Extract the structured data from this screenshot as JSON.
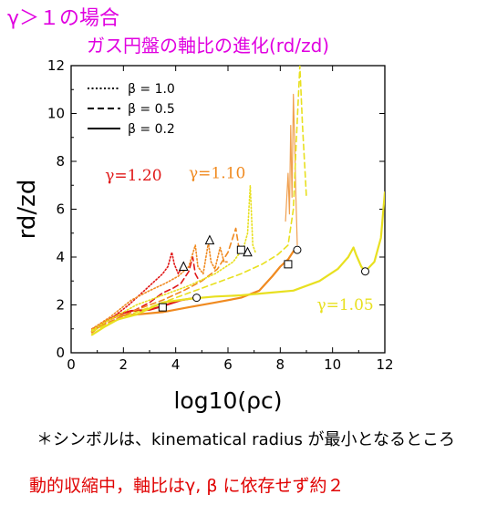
{
  "header": {
    "title": "γ＞１の場合",
    "subtitle": "ガス円盤の軸比の進化(rd/zd)",
    "title_color": "#e000e0"
  },
  "footer": {
    "note": "＊シンボルは、kinematical radius が最小となるところ",
    "conclusion": "動的収縮中，軸比はγ, β に依存せず約２",
    "conclusion_color": "#e00000"
  },
  "chart_data": {
    "type": "line",
    "xlabel": "log10(ρc)",
    "ylabel": "rd/zd",
    "xlim": [
      0,
      12
    ],
    "ylim": [
      0,
      12
    ],
    "xticks": [
      0,
      2,
      4,
      6,
      8,
      10,
      12
    ],
    "yticks": [
      0,
      2,
      4,
      6,
      8,
      10,
      12
    ],
    "grid": false,
    "legend": {
      "position": "top-left",
      "entries": [
        {
          "label": "β = 1.0",
          "style": "dotted"
        },
        {
          "label": "β = 0.5",
          "style": "dashed"
        },
        {
          "label": "β = 0.2",
          "style": "solid"
        }
      ]
    },
    "annotations": [
      {
        "text": "γ=1.20",
        "x": 1.3,
        "y": 7.2,
        "color": "#e01818"
      },
      {
        "text": "γ=1.10",
        "x": 4.5,
        "y": 7.3,
        "color": "#f08a20"
      },
      {
        "text": "γ=1.05",
        "x": 9.4,
        "y": 1.8,
        "color": "#e8e020"
      }
    ],
    "series": [
      {
        "gamma": "1.20",
        "beta": "1.0",
        "color": "#e01818",
        "style": "dotted",
        "points": [
          [
            0.8,
            1.0
          ],
          [
            1.5,
            1.4
          ],
          [
            2.2,
            2.0
          ],
          [
            2.8,
            2.6
          ],
          [
            3.2,
            3.0
          ],
          [
            3.5,
            3.3
          ],
          [
            3.7,
            3.6
          ],
          [
            3.85,
            4.2
          ],
          [
            3.95,
            3.7
          ],
          [
            4.1,
            3.3
          ],
          [
            4.25,
            3.6
          ]
        ]
      },
      {
        "gamma": "1.20",
        "beta": "0.5",
        "color": "#e01818",
        "style": "dashed",
        "points": [
          [
            0.8,
            1.0
          ],
          [
            1.5,
            1.3
          ],
          [
            2.3,
            1.7
          ],
          [
            3.0,
            2.1
          ],
          [
            3.5,
            2.5
          ],
          [
            3.9,
            2.7
          ],
          [
            4.2,
            2.9
          ],
          [
            4.5,
            3.4
          ],
          [
            4.65,
            4.0
          ],
          [
            4.75,
            3.3
          ],
          [
            4.9,
            3.0
          ]
        ]
      },
      {
        "gamma": "1.20",
        "beta": "0.2",
        "color": "#e01818",
        "style": "solid",
        "points": [
          [
            0.8,
            0.9
          ],
          [
            1.3,
            1.3
          ],
          [
            1.8,
            1.6
          ],
          [
            2.3,
            1.75
          ],
          [
            3.0,
            1.8
          ],
          [
            3.5,
            1.95
          ],
          [
            4.2,
            2.2
          ],
          [
            4.8,
            2.3
          ]
        ]
      },
      {
        "gamma": "1.10",
        "beta": "1.0",
        "color": "#f08a20",
        "style": "dotted",
        "points": [
          [
            0.8,
            1.0
          ],
          [
            1.5,
            1.5
          ],
          [
            2.3,
            2.2
          ],
          [
            3.0,
            2.6
          ],
          [
            3.6,
            2.9
          ],
          [
            4.1,
            3.2
          ],
          [
            4.5,
            3.6
          ],
          [
            4.75,
            4.5
          ],
          [
            4.85,
            3.6
          ],
          [
            5.05,
            3.3
          ],
          [
            5.25,
            4.6
          ],
          [
            5.35,
            3.8
          ],
          [
            5.5,
            3.5
          ],
          [
            5.7,
            4.4
          ],
          [
            5.85,
            3.8
          ],
          [
            6.0,
            3.8
          ]
        ]
      },
      {
        "gamma": "1.10",
        "beta": "0.5",
        "color": "#f08a20",
        "style": "dashed",
        "points": [
          [
            0.8,
            0.95
          ],
          [
            1.5,
            1.3
          ],
          [
            2.5,
            1.8
          ],
          [
            3.5,
            2.2
          ],
          [
            4.3,
            2.6
          ],
          [
            5.0,
            3.0
          ],
          [
            5.6,
            3.5
          ],
          [
            6.0,
            4.2
          ],
          [
            6.3,
            5.2
          ],
          [
            6.4,
            4.5
          ],
          [
            6.5,
            4.3
          ]
        ]
      },
      {
        "gamma": "1.10",
        "beta": "0.2",
        "color": "#f08a20",
        "style": "solid",
        "points": [
          [
            0.8,
            0.85
          ],
          [
            1.3,
            1.3
          ],
          [
            1.8,
            1.55
          ],
          [
            2.5,
            1.6
          ],
          [
            3.5,
            1.7
          ],
          [
            4.5,
            1.9
          ],
          [
            5.5,
            2.1
          ],
          [
            6.5,
            2.3
          ],
          [
            7.2,
            2.6
          ],
          [
            7.7,
            3.2
          ],
          [
            8.0,
            3.6
          ],
          [
            8.3,
            3.9
          ],
          [
            8.6,
            4.4
          ]
        ]
      },
      {
        "gamma": "1.05",
        "beta": "1.0",
        "color": "#e8e020",
        "style": "dotted",
        "points": [
          [
            0.8,
            0.95
          ],
          [
            1.5,
            1.4
          ],
          [
            2.5,
            2.0
          ],
          [
            3.5,
            2.4
          ],
          [
            4.5,
            2.8
          ],
          [
            5.5,
            3.3
          ],
          [
            6.2,
            3.8
          ],
          [
            6.6,
            4.4
          ],
          [
            6.75,
            5.0
          ],
          [
            6.85,
            7.0
          ],
          [
            6.95,
            4.5
          ],
          [
            7.05,
            4.2
          ]
        ]
      },
      {
        "gamma": "1.05",
        "beta": "0.5",
        "color": "#e8e020",
        "style": "dashed",
        "points": [
          [
            0.8,
            0.9
          ],
          [
            1.5,
            1.25
          ],
          [
            2.5,
            1.7
          ],
          [
            3.5,
            2.1
          ],
          [
            4.5,
            2.5
          ],
          [
            5.5,
            2.9
          ],
          [
            6.5,
            3.3
          ],
          [
            7.3,
            3.7
          ],
          [
            7.9,
            4.1
          ],
          [
            8.3,
            4.5
          ],
          [
            8.5,
            6.0
          ],
          [
            8.6,
            8.5
          ],
          [
            8.75,
            12.0
          ],
          [
            8.85,
            9.5
          ],
          [
            8.95,
            7.5
          ],
          [
            9.0,
            6.5
          ]
        ]
      },
      {
        "gamma": "1.05",
        "beta": "0.2",
        "color": "#e8e020",
        "style": "solid",
        "points": [
          [
            0.8,
            0.75
          ],
          [
            1.3,
            1.1
          ],
          [
            1.8,
            1.4
          ],
          [
            2.5,
            1.6
          ],
          [
            3.5,
            2.1
          ],
          [
            4.5,
            2.25
          ],
          [
            5.5,
            2.35
          ],
          [
            6.5,
            2.4
          ],
          [
            7.5,
            2.5
          ],
          [
            8.5,
            2.6
          ],
          [
            9.5,
            3.0
          ],
          [
            10.2,
            3.5
          ],
          [
            10.6,
            4.0
          ],
          [
            10.8,
            4.4
          ],
          [
            10.9,
            4.1
          ],
          [
            11.1,
            3.6
          ],
          [
            11.25,
            3.4
          ],
          [
            11.6,
            3.8
          ],
          [
            11.85,
            4.8
          ],
          [
            12.0,
            6.7
          ]
        ]
      }
    ],
    "aux_lines": [
      {
        "color": "#f0a050",
        "style": "solid",
        "points": [
          [
            8.2,
            5.5
          ],
          [
            8.3,
            7.5
          ],
          [
            8.35,
            5.8
          ],
          [
            8.4,
            9.5
          ],
          [
            8.45,
            6.5
          ],
          [
            8.5,
            10.8
          ],
          [
            8.55,
            8.8
          ],
          [
            8.6,
            6.5
          ],
          [
            8.65,
            4.5
          ]
        ]
      }
    ],
    "markers": [
      {
        "shape": "square",
        "x": 3.5,
        "y": 1.9
      },
      {
        "shape": "circle",
        "x": 4.8,
        "y": 2.3
      },
      {
        "shape": "triangle",
        "x": 4.3,
        "y": 3.6
      },
      {
        "shape": "triangle",
        "x": 5.3,
        "y": 4.7
      },
      {
        "shape": "square",
        "x": 6.5,
        "y": 4.3
      },
      {
        "shape": "triangle",
        "x": 6.75,
        "y": 4.2
      },
      {
        "shape": "square",
        "x": 8.3,
        "y": 3.7
      },
      {
        "shape": "circle",
        "x": 8.65,
        "y": 4.3
      },
      {
        "shape": "circle",
        "x": 11.25,
        "y": 3.4
      }
    ]
  }
}
